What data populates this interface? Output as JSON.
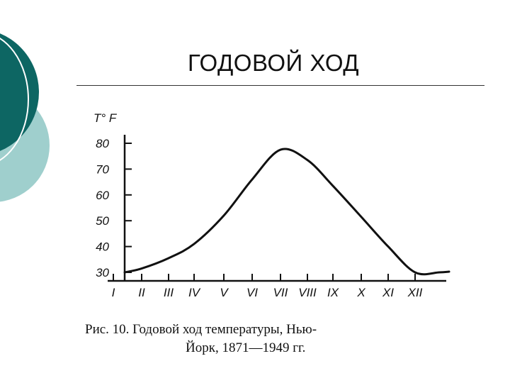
{
  "slide": {
    "title": "ГОДОВОЙ ХОД",
    "caption_line1": "Рис.  10.   Годовой  ход  температуры,  Нью-",
    "caption_line2": "Йорк, 1871—1949 гг.",
    "colors": {
      "deco_dark": "#0d6663",
      "deco_light": "#9fcfcd",
      "ink": "#111111"
    }
  },
  "chart_data": {
    "type": "line",
    "ylabel": "T° F",
    "ylim": [
      30,
      80
    ],
    "yticks": [
      30,
      40,
      50,
      60,
      70,
      80
    ],
    "ytick_labels": [
      "30",
      "40",
      "50",
      "60",
      "70",
      "80"
    ],
    "categories": [
      "I",
      "II",
      "III",
      "IV",
      "V",
      "VI",
      "VII",
      "VIII",
      "IX",
      "X",
      "XI",
      "XII"
    ],
    "series": [
      {
        "values": [
          30,
          31.5,
          35.5,
          41,
          52,
          66,
          77.5,
          73.5,
          63.5,
          51.5,
          40,
          30
        ]
      }
    ],
    "grid": false,
    "legend": "none"
  }
}
